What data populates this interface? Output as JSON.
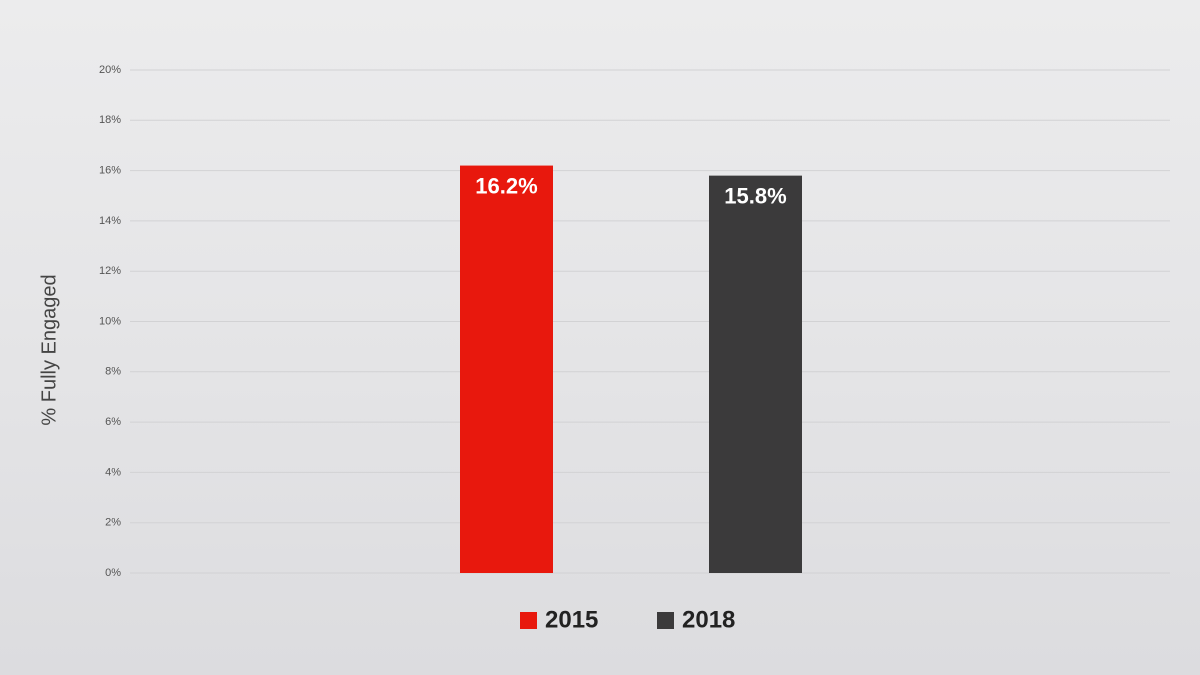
{
  "chart_data": {
    "type": "bar",
    "y_label": "% Fully Engaged",
    "categories": [
      null
    ],
    "series": [
      {
        "name": "2015",
        "color": "#e8180d",
        "values": [
          16.2
        ],
        "value_labels": [
          "16.2%"
        ]
      },
      {
        "name": "2018",
        "color": "#3b3a3b",
        "values": [
          15.8
        ],
        "value_labels": [
          "15.8%"
        ]
      }
    ],
    "ylim": [
      0,
      20
    ],
    "yticks": [
      {
        "value": 0,
        "label": "0%"
      },
      {
        "value": 2,
        "label": "2%"
      },
      {
        "value": 4,
        "label": "4%"
      },
      {
        "value": 6,
        "label": "6%"
      },
      {
        "value": 8,
        "label": "8%"
      },
      {
        "value": 10,
        "label": "10%"
      },
      {
        "value": 12,
        "label": "12%"
      },
      {
        "value": 14,
        "label": "14%"
      },
      {
        "value": 16,
        "label": "16%"
      },
      {
        "value": 18,
        "label": "18%"
      },
      {
        "value": 20,
        "label": "20%"
      }
    ],
    "grid": true,
    "legend": "bottom"
  }
}
